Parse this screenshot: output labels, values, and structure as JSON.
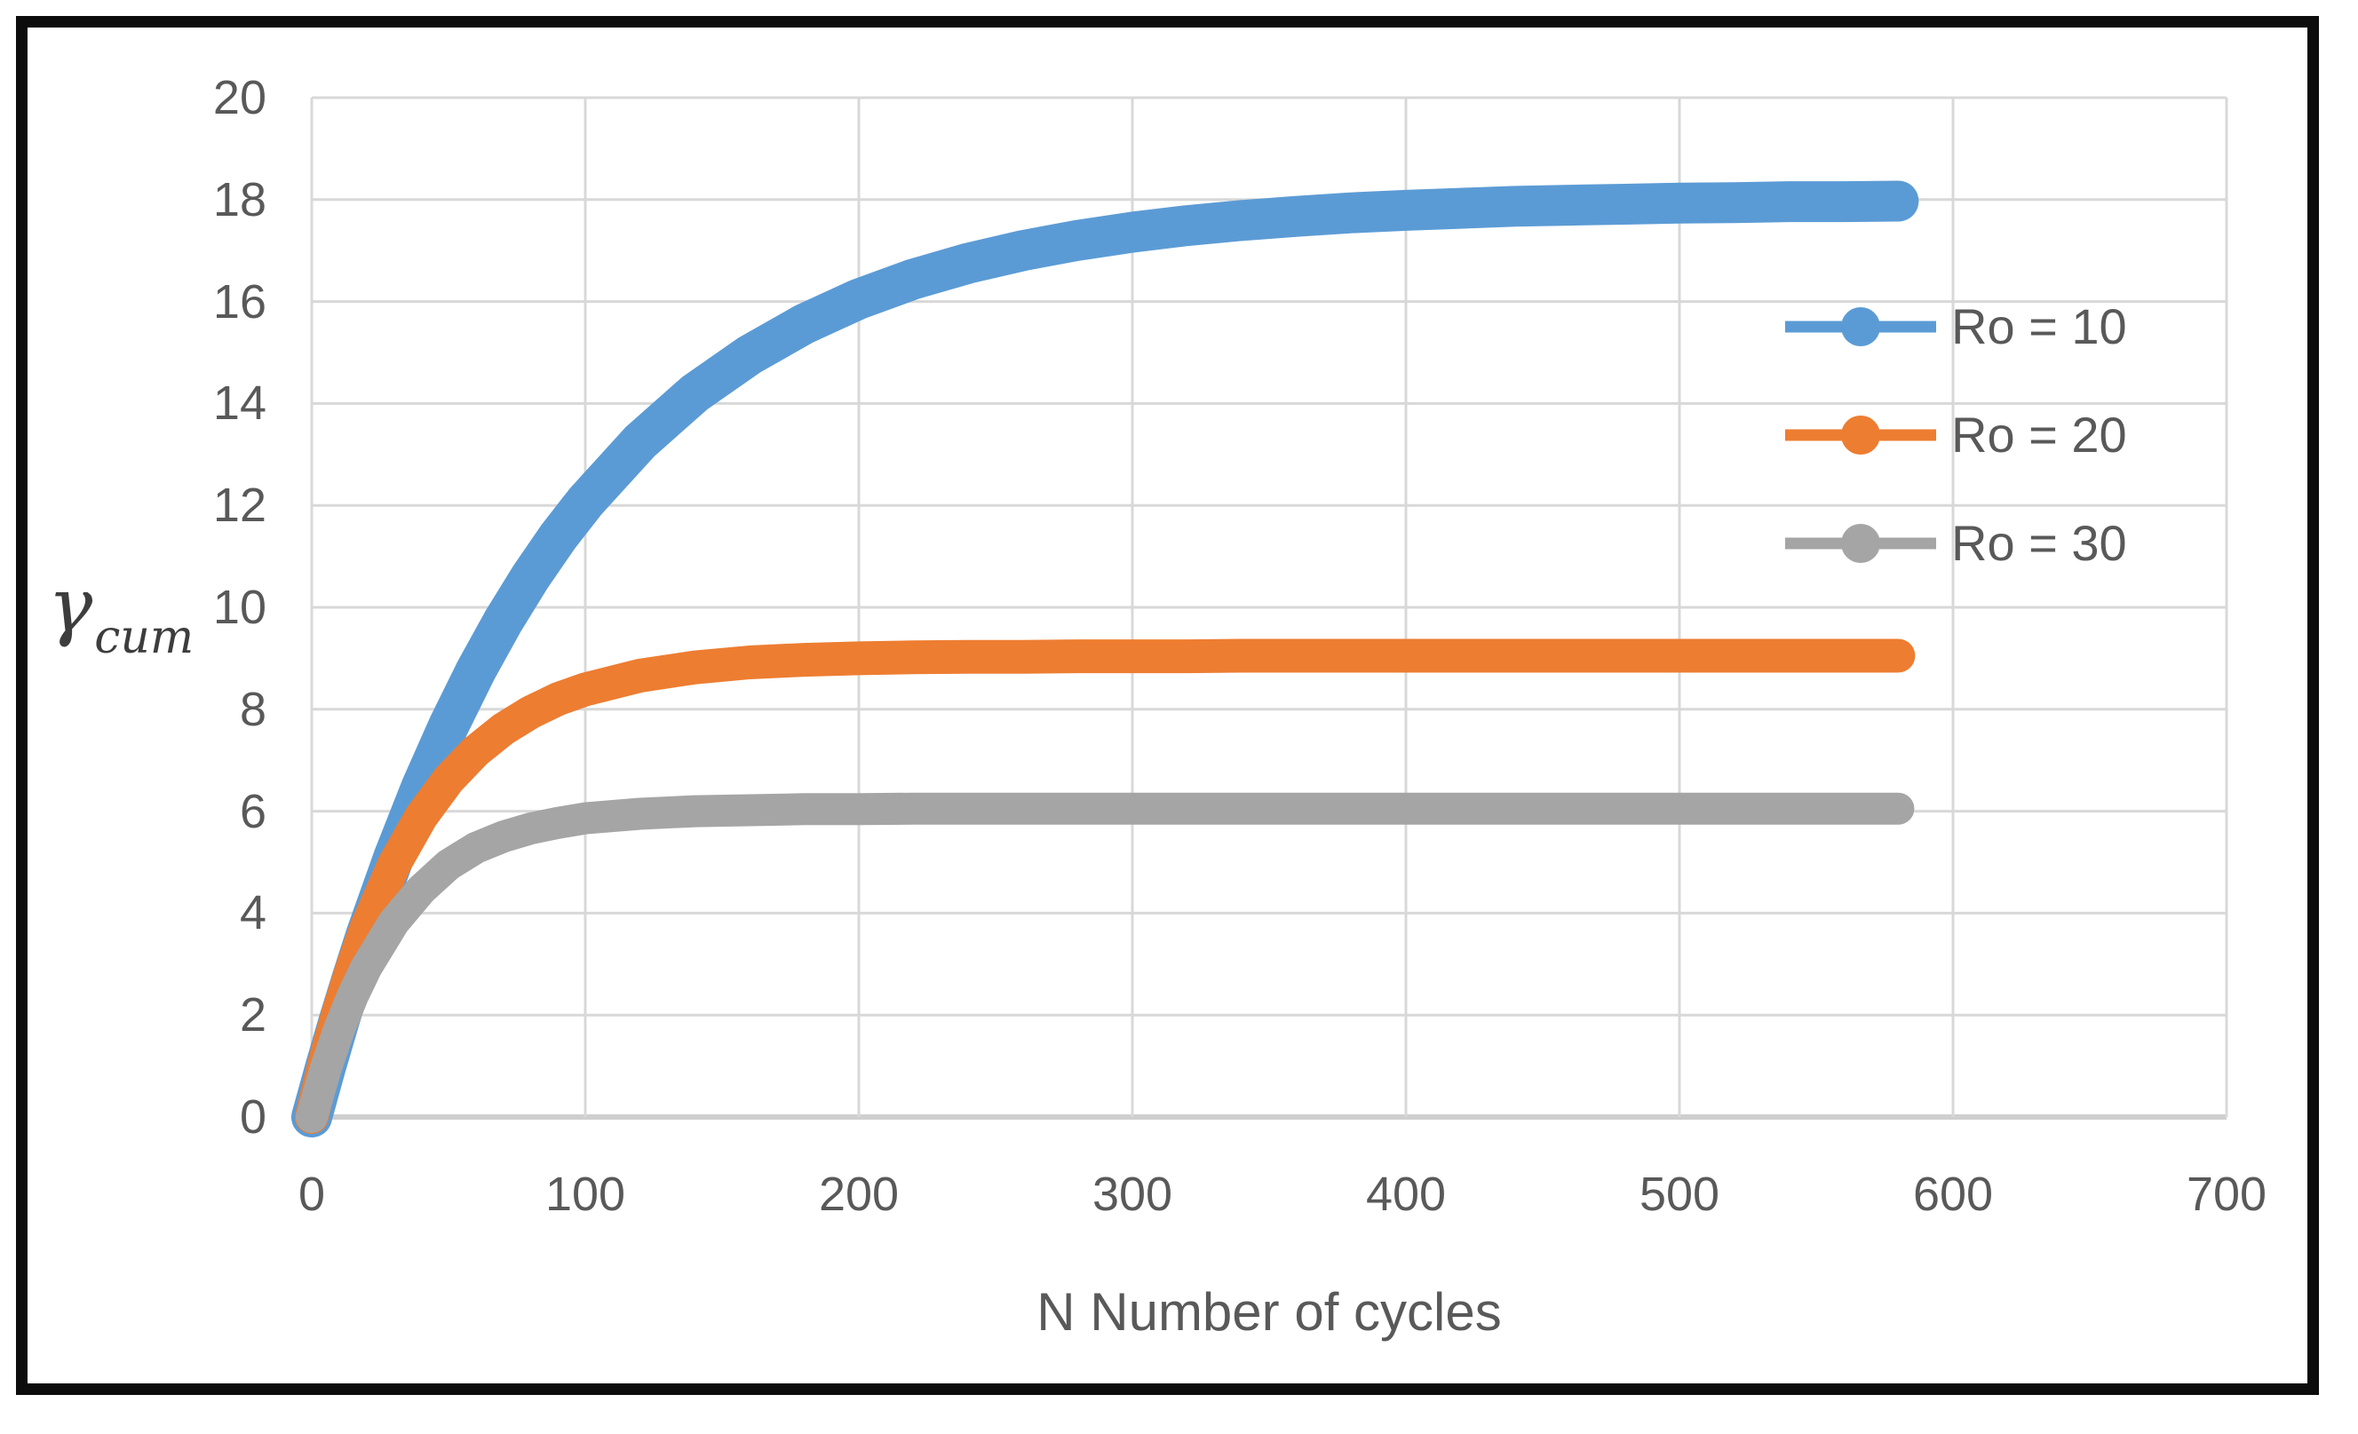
{
  "figure": {
    "background_color": "#ffffff",
    "border_color": "#0c0c0c"
  },
  "chart_data": {
    "type": "line",
    "title": "",
    "xlabel": "N Number of cycles",
    "ylabel": "γcum",
    "ylabel_base": "γ",
    "ylabel_subscript": "cum",
    "xlim": [
      0,
      700
    ],
    "ylim": [
      0,
      20
    ],
    "x_ticks": [
      0,
      100,
      200,
      300,
      400,
      500,
      600,
      700
    ],
    "y_ticks": [
      0,
      2,
      4,
      6,
      8,
      10,
      12,
      14,
      16,
      18,
      20
    ],
    "grid": true,
    "gridline_color": "#d8d8d8",
    "axis_line_color": "#cfcfcf",
    "text_color": "#595959",
    "legend_position": "inside-right",
    "series": [
      {
        "name": "Ro = 10",
        "color": "#5B9BD5",
        "marker": "circle",
        "line_width": 46,
        "plateau": 18,
        "points": [
          [
            0,
            0
          ],
          [
            5,
            0.97
          ],
          [
            10,
            1.89
          ],
          [
            15,
            2.76
          ],
          [
            20,
            3.59
          ],
          [
            30,
            5.1
          ],
          [
            40,
            6.46
          ],
          [
            50,
            7.67
          ],
          [
            60,
            8.76
          ],
          [
            70,
            9.73
          ],
          [
            80,
            10.6
          ],
          [
            90,
            11.38
          ],
          [
            100,
            12.07
          ],
          [
            120,
            13.25
          ],
          [
            140,
            14.2
          ],
          [
            160,
            14.95
          ],
          [
            180,
            15.56
          ],
          [
            200,
            16.05
          ],
          [
            220,
            16.44
          ],
          [
            240,
            16.75
          ],
          [
            260,
            17.0
          ],
          [
            280,
            17.2
          ],
          [
            300,
            17.36
          ],
          [
            320,
            17.49
          ],
          [
            340,
            17.59
          ],
          [
            360,
            17.67
          ],
          [
            380,
            17.74
          ],
          [
            400,
            17.79
          ],
          [
            420,
            17.83
          ],
          [
            440,
            17.87
          ],
          [
            460,
            17.89
          ],
          [
            480,
            17.91
          ],
          [
            500,
            17.93
          ],
          [
            520,
            17.94
          ],
          [
            540,
            17.96
          ],
          [
            560,
            17.96
          ],
          [
            580,
            17.97
          ]
        ]
      },
      {
        "name": "Ro = 20",
        "color": "#ED7D31",
        "marker": "circle",
        "line_width": 38,
        "plateau": 9.05,
        "points": [
          [
            0,
            0
          ],
          [
            5,
            1.12
          ],
          [
            10,
            2.09
          ],
          [
            15,
            2.95
          ],
          [
            20,
            3.71
          ],
          [
            30,
            4.94
          ],
          [
            40,
            5.89
          ],
          [
            50,
            6.62
          ],
          [
            60,
            7.18
          ],
          [
            70,
            7.61
          ],
          [
            80,
            7.94
          ],
          [
            90,
            8.2
          ],
          [
            100,
            8.39
          ],
          [
            120,
            8.66
          ],
          [
            140,
            8.82
          ],
          [
            160,
            8.92
          ],
          [
            180,
            8.97
          ],
          [
            200,
            9.0
          ],
          [
            220,
            9.02
          ],
          [
            240,
            9.03
          ],
          [
            260,
            9.03
          ],
          [
            280,
            9.04
          ],
          [
            300,
            9.04
          ],
          [
            320,
            9.04
          ],
          [
            340,
            9.05
          ],
          [
            360,
            9.05
          ],
          [
            380,
            9.05
          ],
          [
            400,
            9.05
          ],
          [
            420,
            9.05
          ],
          [
            440,
            9.05
          ],
          [
            460,
            9.05
          ],
          [
            480,
            9.05
          ],
          [
            500,
            9.05
          ],
          [
            520,
            9.05
          ],
          [
            540,
            9.05
          ],
          [
            560,
            9.05
          ],
          [
            580,
            9.05
          ]
        ]
      },
      {
        "name": "Ro = 30",
        "color": "#A5A5A5",
        "marker": "circle",
        "line_width": 36,
        "plateau": 6.05,
        "points": [
          [
            0,
            0
          ],
          [
            5,
            0.93
          ],
          [
            10,
            1.72
          ],
          [
            15,
            2.38
          ],
          [
            20,
            2.94
          ],
          [
            30,
            3.82
          ],
          [
            40,
            4.46
          ],
          [
            50,
            4.95
          ],
          [
            60,
            5.28
          ],
          [
            70,
            5.5
          ],
          [
            80,
            5.66
          ],
          [
            90,
            5.77
          ],
          [
            100,
            5.86
          ],
          [
            120,
            5.95
          ],
          [
            140,
            6.0
          ],
          [
            160,
            6.02
          ],
          [
            180,
            6.04
          ],
          [
            200,
            6.04
          ],
          [
            220,
            6.05
          ],
          [
            240,
            6.05
          ],
          [
            260,
            6.05
          ],
          [
            280,
            6.05
          ],
          [
            300,
            6.05
          ],
          [
            320,
            6.05
          ],
          [
            340,
            6.05
          ],
          [
            360,
            6.05
          ],
          [
            380,
            6.05
          ],
          [
            400,
            6.05
          ],
          [
            420,
            6.05
          ],
          [
            440,
            6.05
          ],
          [
            460,
            6.05
          ],
          [
            480,
            6.05
          ],
          [
            500,
            6.05
          ],
          [
            520,
            6.05
          ],
          [
            540,
            6.05
          ],
          [
            560,
            6.05
          ],
          [
            580,
            6.05
          ]
        ]
      }
    ]
  }
}
